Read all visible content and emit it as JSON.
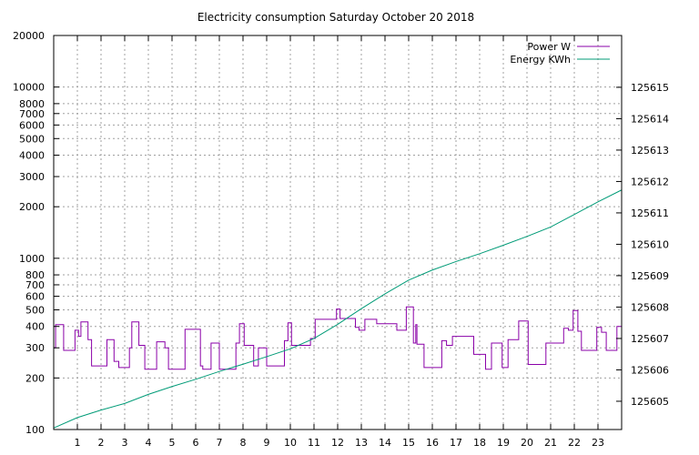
{
  "chart_data": {
    "type": "line",
    "title": "Electricity consumption Saturday October 20 2018",
    "x_ticks": [
      1,
      2,
      3,
      4,
      5,
      6,
      7,
      8,
      9,
      10,
      11,
      12,
      13,
      14,
      15,
      16,
      17,
      18,
      19,
      20,
      21,
      22,
      23
    ],
    "xlim": [
      0,
      24
    ],
    "y_left": {
      "scale": "log",
      "range": [
        100,
        20000
      ],
      "ticks": [
        100,
        200,
        300,
        400,
        500,
        600,
        700,
        800,
        1000,
        2000,
        3000,
        4000,
        5000,
        6000,
        7000,
        8000,
        10000,
        20000
      ]
    },
    "y_right": {
      "scale": "linear",
      "range": [
        125604.1,
        125616.65
      ],
      "ticks": [
        125605,
        125606,
        125607,
        125608,
        125609,
        125610,
        125611,
        125612,
        125613,
        125614,
        125615
      ]
    },
    "grid": true,
    "legend_position": "top-right",
    "series": [
      {
        "name": "Power W",
        "axis": "left",
        "step": true,
        "color": "#8a00a8",
        "points": [
          [
            0.0,
            300
          ],
          [
            0.08,
            410
          ],
          [
            0.42,
            290
          ],
          [
            0.9,
            380
          ],
          [
            1.05,
            350
          ],
          [
            1.15,
            425
          ],
          [
            1.45,
            335
          ],
          [
            1.6,
            235
          ],
          [
            2.25,
            335
          ],
          [
            2.55,
            250
          ],
          [
            2.75,
            230
          ],
          [
            3.2,
            300
          ],
          [
            3.3,
            425
          ],
          [
            3.6,
            310
          ],
          [
            3.85,
            225
          ],
          [
            4.35,
            325
          ],
          [
            4.7,
            300
          ],
          [
            4.85,
            225
          ],
          [
            5.55,
            385
          ],
          [
            6.2,
            235
          ],
          [
            6.3,
            225
          ],
          [
            6.65,
            320
          ],
          [
            7.0,
            225
          ],
          [
            7.7,
            320
          ],
          [
            7.85,
            415
          ],
          [
            8.05,
            310
          ],
          [
            8.45,
            235
          ],
          [
            8.65,
            300
          ],
          [
            9.0,
            235
          ],
          [
            9.75,
            330
          ],
          [
            9.9,
            420
          ],
          [
            10.05,
            310
          ],
          [
            10.85,
            340
          ],
          [
            11.05,
            440
          ],
          [
            11.95,
            505
          ],
          [
            12.1,
            445
          ],
          [
            12.75,
            395
          ],
          [
            12.9,
            380
          ],
          [
            13.15,
            440
          ],
          [
            13.65,
            415
          ],
          [
            14.5,
            380
          ],
          [
            14.9,
            520
          ],
          [
            15.2,
            320
          ],
          [
            15.3,
            410
          ],
          [
            15.35,
            315
          ],
          [
            15.65,
            230
          ],
          [
            16.4,
            330
          ],
          [
            16.6,
            310
          ],
          [
            16.85,
            350
          ],
          [
            17.75,
            275
          ],
          [
            18.25,
            225
          ],
          [
            18.5,
            320
          ],
          [
            18.95,
            230
          ],
          [
            19.2,
            335
          ],
          [
            19.65,
            430
          ],
          [
            20.05,
            240
          ],
          [
            20.8,
            320
          ],
          [
            21.55,
            390
          ],
          [
            21.75,
            380
          ],
          [
            21.95,
            495
          ],
          [
            22.15,
            375
          ],
          [
            22.3,
            290
          ],
          [
            22.95,
            395
          ],
          [
            23.15,
            370
          ],
          [
            23.35,
            290
          ],
          [
            23.8,
            400
          ],
          [
            24.0,
            400
          ]
        ]
      },
      {
        "name": "Energy KWh",
        "axis": "right",
        "step": false,
        "color": "#009b77",
        "points": [
          [
            0.0,
            125604.15
          ],
          [
            1.0,
            125604.48
          ],
          [
            2.0,
            125604.72
          ],
          [
            3.0,
            125604.93
          ],
          [
            4.0,
            125605.22
          ],
          [
            5.0,
            125605.47
          ],
          [
            6.0,
            125605.7
          ],
          [
            7.0,
            125605.95
          ],
          [
            8.0,
            125606.18
          ],
          [
            9.0,
            125606.42
          ],
          [
            10.0,
            125606.67
          ],
          [
            11.0,
            125607.0
          ],
          [
            12.0,
            125607.45
          ],
          [
            13.0,
            125607.95
          ],
          [
            14.0,
            125608.42
          ],
          [
            15.0,
            125608.86
          ],
          [
            16.0,
            125609.18
          ],
          [
            17.0,
            125609.45
          ],
          [
            18.0,
            125609.7
          ],
          [
            19.0,
            125609.97
          ],
          [
            20.0,
            125610.25
          ],
          [
            21.0,
            125610.55
          ],
          [
            22.0,
            125610.95
          ],
          [
            23.0,
            125611.35
          ],
          [
            24.0,
            125611.73
          ]
        ]
      }
    ]
  }
}
